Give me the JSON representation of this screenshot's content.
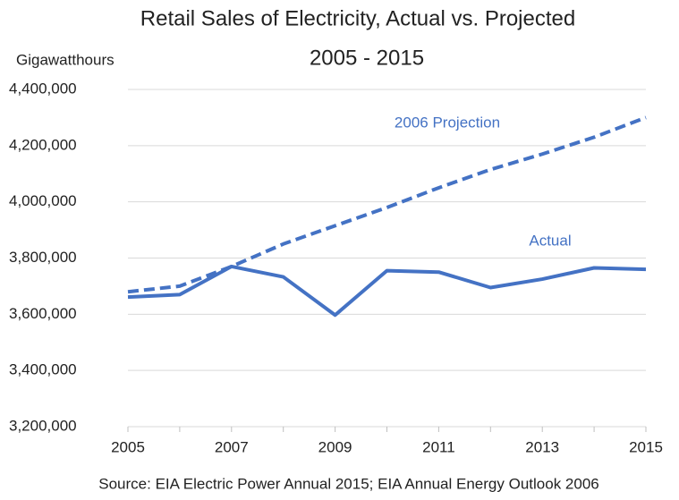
{
  "chart_data": {
    "type": "line",
    "title": "Retail Sales of Electricity, Actual vs. Projected",
    "subtitle": "2005 - 2015",
    "y_label": "Gigawatthours",
    "source": "Source: EIA Electric Power Annual 2015; EIA Annual Energy Outlook 2006",
    "x": [
      2005,
      2006,
      2007,
      2008,
      2009,
      2010,
      2011,
      2012,
      2013,
      2014,
      2015
    ],
    "xlim": [
      2005,
      2015
    ],
    "xticks": [
      2005,
      2007,
      2009,
      2011,
      2013,
      2015
    ],
    "ylim": [
      3200000,
      4400000
    ],
    "yticks": [
      {
        "value": 3200000,
        "label": "3,200,000"
      },
      {
        "value": 3400000,
        "label": "3,400,000"
      },
      {
        "value": 3600000,
        "label": "3,600,000"
      },
      {
        "value": 3800000,
        "label": "3,800,000"
      },
      {
        "value": 4000000,
        "label": "4,000,000"
      },
      {
        "value": 4200000,
        "label": "4,200,000"
      },
      {
        "value": 4400000,
        "label": "4,400,000"
      }
    ],
    "grid": true,
    "series": [
      {
        "name": "Actual",
        "color": "#4472c4",
        "dash": false,
        "values": [
          3661000,
          3670000,
          3770000,
          3733000,
          3597000,
          3755000,
          3750000,
          3695000,
          3725000,
          3765000,
          3760000
        ]
      },
      {
        "name": "2006 Projection",
        "color": "#4472c4",
        "dash": true,
        "values": [
          3680000,
          3700000,
          3770000,
          3850000,
          3915000,
          3980000,
          4050000,
          4115000,
          4170000,
          4230000,
          4300000
        ]
      }
    ]
  }
}
